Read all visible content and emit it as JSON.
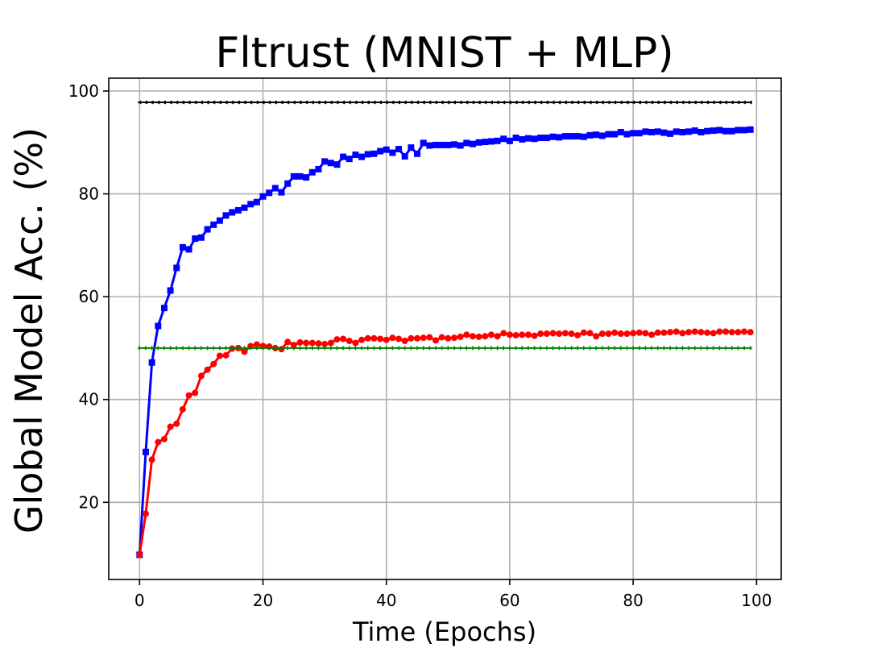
{
  "chart_data": {
    "type": "line",
    "title": "Fltrust (MNIST + MLP)",
    "xlabel": "Time (Epochs)",
    "ylabel": "Global Model Acc. (%)",
    "xlim": [
      -5,
      104
    ],
    "ylim": [
      5,
      102.5
    ],
    "xticks": [
      0,
      20,
      40,
      60,
      80,
      100
    ],
    "yticks": [
      20,
      40,
      60,
      80,
      100
    ],
    "grid": true,
    "legend": "none",
    "series": [
      {
        "color": "#000000",
        "marker": "triangle-left",
        "values": [
          97.8,
          97.8,
          97.8,
          97.8,
          97.8,
          97.8,
          97.8,
          97.8,
          97.8,
          97.8,
          97.8,
          97.8,
          97.8,
          97.8,
          97.8,
          97.8,
          97.8,
          97.8,
          97.8,
          97.8,
          97.8,
          97.8,
          97.8,
          97.8,
          97.8,
          97.8,
          97.8,
          97.8,
          97.8,
          97.8,
          97.8,
          97.8,
          97.8,
          97.8,
          97.8,
          97.8,
          97.8,
          97.8,
          97.8,
          97.8,
          97.8,
          97.8,
          97.8,
          97.8,
          97.8,
          97.8,
          97.8,
          97.8,
          97.8,
          97.8,
          97.8,
          97.8,
          97.8,
          97.8,
          97.8,
          97.8,
          97.8,
          97.8,
          97.8,
          97.8,
          97.8,
          97.8,
          97.8,
          97.8,
          97.8,
          97.8,
          97.8,
          97.8,
          97.8,
          97.8,
          97.8,
          97.8,
          97.8,
          97.8,
          97.8,
          97.8,
          97.8,
          97.8,
          97.8,
          97.8,
          97.8,
          97.8,
          97.8,
          97.8,
          97.8,
          97.8,
          97.8,
          97.8,
          97.8,
          97.8,
          97.8,
          97.8,
          97.8,
          97.8,
          97.8,
          97.8,
          97.8,
          97.8,
          97.8,
          97.8
        ]
      },
      {
        "color": "#0000ff",
        "marker": "square",
        "values": [
          9.8,
          29.8,
          47.2,
          54.3,
          57.8,
          61.2,
          65.6,
          69.6,
          69.2,
          71.3,
          71.5,
          73.1,
          74.0,
          74.8,
          75.8,
          76.4,
          76.8,
          77.3,
          78.0,
          78.4,
          79.5,
          80.2,
          81.1,
          80.3,
          82.0,
          83.4,
          83.4,
          83.2,
          84.2,
          84.8,
          86.3,
          86.0,
          85.7,
          87.2,
          86.8,
          87.6,
          87.2,
          87.7,
          87.8,
          88.3,
          88.6,
          88.0,
          88.7,
          87.3,
          89.0,
          87.8,
          89.9,
          89.4,
          89.5,
          89.5,
          89.5,
          89.6,
          89.4,
          89.9,
          89.7,
          90.0,
          90.1,
          90.2,
          90.3,
          90.7,
          90.3,
          90.9,
          90.6,
          90.8,
          90.7,
          90.9,
          90.9,
          91.1,
          91.0,
          91.2,
          91.2,
          91.2,
          91.1,
          91.4,
          91.5,
          91.3,
          91.6,
          91.6,
          92.0,
          91.6,
          91.8,
          91.8,
          92.1,
          92.0,
          92.1,
          91.9,
          91.7,
          92.1,
          92.0,
          92.1,
          92.3,
          92.0,
          92.2,
          92.3,
          92.4,
          92.2,
          92.2,
          92.4,
          92.4,
          92.5
        ]
      },
      {
        "color": "#ff0000",
        "marker": "circle",
        "values": [
          9.8,
          17.8,
          28.3,
          31.7,
          32.3,
          34.7,
          35.3,
          38.1,
          40.8,
          41.3,
          44.6,
          45.8,
          46.9,
          48.5,
          48.6,
          49.9,
          50.0,
          49.3,
          50.4,
          50.7,
          50.4,
          50.3,
          50.0,
          49.8,
          51.2,
          50.6,
          51.1,
          51.0,
          51.0,
          50.9,
          50.8,
          51.0,
          51.7,
          51.8,
          51.4,
          51.0,
          51.6,
          51.9,
          51.9,
          51.8,
          51.6,
          52.0,
          51.8,
          51.4,
          51.9,
          51.9,
          52.0,
          52.1,
          51.5,
          52.1,
          51.9,
          52.0,
          52.2,
          52.6,
          52.3,
          52.2,
          52.3,
          52.6,
          52.3,
          52.9,
          52.6,
          52.5,
          52.6,
          52.6,
          52.4,
          52.8,
          52.8,
          52.9,
          52.8,
          52.9,
          52.8,
          52.5,
          53.0,
          52.9,
          52.3,
          52.8,
          52.8,
          53.0,
          52.8,
          52.8,
          52.9,
          53.0,
          52.9,
          52.6,
          53.0,
          53.0,
          53.1,
          53.2,
          52.9,
          53.1,
          53.2,
          53.1,
          53.0,
          52.9,
          53.2,
          53.2,
          53.1,
          53.1,
          53.2,
          53.1
        ]
      },
      {
        "color": "#008000",
        "marker": "plus",
        "values": [
          50.0,
          50.0,
          50.0,
          50.0,
          50.0,
          50.0,
          50.0,
          50.0,
          50.0,
          50.0,
          50.0,
          50.0,
          50.0,
          50.0,
          50.0,
          50.0,
          50.0,
          50.0,
          50.0,
          50.0,
          50.0,
          50.0,
          50.0,
          50.0,
          50.0,
          50.0,
          50.0,
          50.0,
          50.0,
          50.0,
          50.0,
          50.0,
          50.0,
          50.0,
          50.0,
          50.0,
          50.0,
          50.0,
          50.0,
          50.0,
          50.0,
          50.0,
          50.0,
          50.0,
          50.0,
          50.0,
          50.0,
          50.0,
          50.0,
          50.0,
          50.0,
          50.0,
          50.0,
          50.0,
          50.0,
          50.0,
          50.0,
          50.0,
          50.0,
          50.0,
          50.0,
          50.0,
          50.0,
          50.0,
          50.0,
          50.0,
          50.0,
          50.0,
          50.0,
          50.0,
          50.0,
          50.0,
          50.0,
          50.0,
          50.0,
          50.0,
          50.0,
          50.0,
          50.0,
          50.0,
          50.0,
          50.0,
          50.0,
          50.0,
          50.0,
          50.0,
          50.0,
          50.0,
          50.0,
          50.0,
          50.0,
          50.0,
          50.0,
          50.0,
          50.0,
          50.0,
          50.0,
          50.0,
          50.0,
          50.0
        ]
      }
    ]
  }
}
